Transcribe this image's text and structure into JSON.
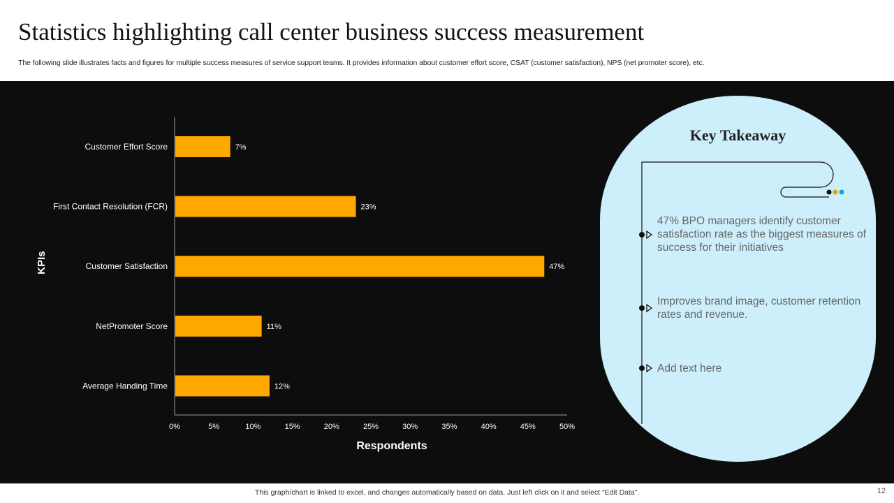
{
  "header": {
    "title": "Statistics highlighting call center business success measurement",
    "subtitle": "The following slide illustrates facts and figures for multiple success measures of service support teams. It provides information about customer effort score, CSAT  (customer satisfaction), NPS (net promoter score), etc."
  },
  "chart_data": {
    "type": "bar",
    "orientation": "horizontal",
    "categories": [
      "Customer Effort Score",
      "First Contact Resolution (FCR)",
      "Customer Satisfaction",
      "NetPromoter Score",
      "Average Handing Time"
    ],
    "values": [
      7,
      23,
      47,
      11,
      12
    ],
    "value_labels": [
      "7%",
      "23%",
      "47%",
      "11%",
      "12%"
    ],
    "xlabel": "Respondents",
    "ylabel": "KPIs",
    "xlim": [
      0,
      50
    ],
    "xticks": [
      0,
      5,
      10,
      15,
      20,
      25,
      30,
      35,
      40,
      45,
      50
    ],
    "xtick_labels": [
      "0%",
      "5%",
      "10%",
      "15%",
      "20%",
      "25%",
      "30%",
      "35%",
      "40%",
      "45%",
      "50%"
    ],
    "grid": false,
    "bar_color": "#ffa800"
  },
  "takeaway": {
    "title": "Key Takeaway",
    "points": [
      "47% BPO managers identify customer satisfaction rate as the biggest measures of success for their initiatives",
      "Improves brand image, customer retention rates and revenue.",
      "Add text here"
    ],
    "dot_colors": [
      "#111111",
      "#f5a000",
      "#1aa6d0"
    ]
  },
  "footer": {
    "note": "This graph/chart is linked to excel,  and changes automatically based on data. Just left click on it and select “Edit Data”.",
    "page_number": "12"
  }
}
